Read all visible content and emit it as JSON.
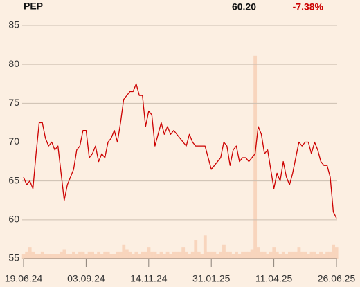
{
  "chart_data": {
    "type": "line",
    "title": "PEP",
    "last_price": "60.20",
    "change": "-7.38%",
    "categories": [
      "19.06.24",
      null,
      null,
      null,
      null,
      null,
      null,
      null,
      null,
      null,
      null,
      null,
      null,
      null,
      null,
      null,
      null,
      null,
      null,
      null,
      "03.09.24",
      null,
      null,
      null,
      null,
      null,
      null,
      null,
      null,
      null,
      null,
      null,
      null,
      null,
      null,
      null,
      null,
      null,
      null,
      null,
      "14.11.24",
      null,
      null,
      null,
      null,
      null,
      null,
      null,
      null,
      null,
      null,
      null,
      null,
      null,
      null,
      null,
      null,
      null,
      null,
      null,
      "31.01.25",
      null,
      null,
      null,
      null,
      null,
      null,
      null,
      null,
      null,
      null,
      null,
      null,
      null,
      null,
      null,
      null,
      null,
      null,
      null,
      "11.04.25",
      null,
      null,
      null,
      null,
      null,
      null,
      null,
      null,
      null,
      null,
      null,
      null,
      null,
      null,
      null,
      null,
      null,
      null,
      null,
      "26.06.25"
    ],
    "series": [
      {
        "name": "PEP",
        "color": "#cc0000",
        "values": [
          65.5,
          64.5,
          65,
          64,
          68.5,
          72.5,
          72.5,
          70.5,
          69.5,
          70,
          69,
          69.5,
          66,
          62.5,
          64.5,
          65.5,
          66.5,
          69,
          69.5,
          71.5,
          71.5,
          68,
          68.5,
          69.5,
          67.5,
          68.5,
          68,
          70,
          70.5,
          71.5,
          70,
          72.5,
          75.5,
          76,
          76.5,
          76.5,
          77.5,
          76,
          76,
          72,
          74,
          73.5,
          69.5,
          71,
          72.5,
          71,
          72,
          71,
          71.5,
          71,
          70.5,
          70,
          69.5,
          71,
          70,
          69.5,
          69.5,
          69.5,
          69.5,
          68,
          66.5,
          67,
          67.5,
          68,
          70,
          69.5,
          67,
          69,
          69.5,
          67.5,
          68,
          68,
          67.5,
          68,
          68.5,
          72,
          71,
          68.5,
          69,
          66.5,
          64,
          66,
          65,
          67.5,
          65.5,
          64.5,
          66,
          68,
          70,
          69.5,
          70,
          70,
          68.5,
          70,
          69,
          67.5,
          67,
          67,
          65.5,
          61,
          60.2
        ]
      },
      {
        "name": "Volume",
        "color": "#f8d5bd",
        "axis": "y2",
        "values": [
          2,
          3,
          5,
          3,
          2,
          2,
          3,
          2,
          2,
          2,
          2,
          2,
          3,
          4,
          2,
          2,
          3,
          2,
          3,
          3,
          2,
          3,
          3,
          2,
          3,
          2,
          3,
          3,
          2,
          2,
          3,
          3,
          6,
          4,
          3,
          2,
          3,
          2,
          3,
          3,
          5,
          3,
          3,
          2,
          3,
          2,
          3,
          2,
          3,
          3,
          3,
          5,
          3,
          2,
          3,
          8,
          3,
          2,
          10,
          3,
          3,
          3,
          2,
          3,
          6,
          3,
          3,
          2,
          3,
          2,
          3,
          3,
          3,
          4,
          87,
          5,
          3,
          3,
          2,
          3,
          5,
          3,
          2,
          3,
          2,
          3,
          3,
          3,
          5,
          3,
          3,
          2,
          3,
          3,
          2,
          3,
          2,
          3,
          3,
          6,
          5
        ]
      }
    ],
    "ylim": [
      55,
      85
    ],
    "yticks": [
      55,
      60,
      65,
      70,
      75,
      80,
      85
    ],
    "y2lim": [
      0,
      100
    ],
    "grid": true
  }
}
